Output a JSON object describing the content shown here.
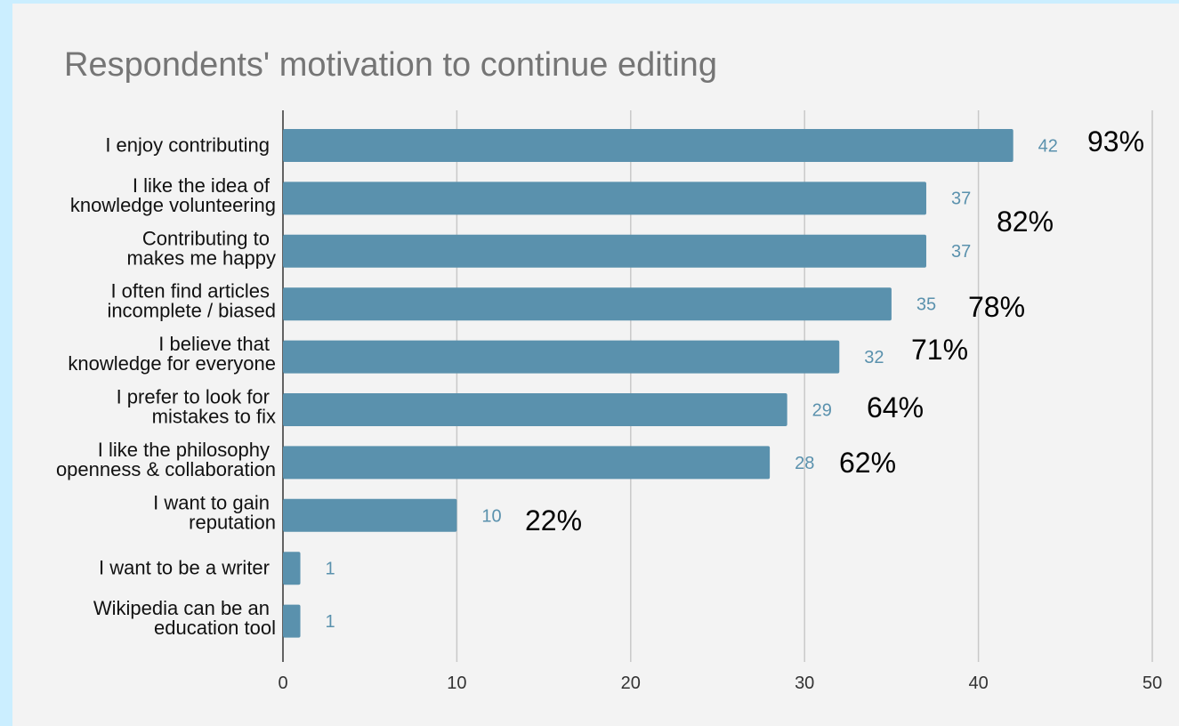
{
  "chart_data": {
    "type": "bar",
    "orientation": "horizontal",
    "title": "Respondents' motivation to continue editing",
    "categories": [
      "I enjoy contributing",
      "I like the idea of knowledge volunteering",
      "Contributing to makes me happy",
      "I often find articles incomplete / biased",
      "I believe that knowledge for everyone",
      "I prefer to look for mistakes to fix",
      "I like the philosophy openness & collaboration",
      "I want to gain reputation",
      "I want to be a writer",
      "Wikipedia can be an education tool"
    ],
    "category_label_lines": [
      [
        "I enjoy contributing"
      ],
      [
        "I like the idea of",
        "knowledge volunteering"
      ],
      [
        "Contributing to",
        "makes me happy"
      ],
      [
        "I often find articles",
        "incomplete / biased"
      ],
      [
        "I believe that",
        "knowledge for everyone"
      ],
      [
        "I prefer to look for",
        "mistakes to fix"
      ],
      [
        "I like the philosophy",
        "openness & collaboration"
      ],
      [
        "I want to gain",
        "reputation"
      ],
      [
        "I want to be a writer"
      ],
      [
        "Wikipedia can be an",
        "education tool"
      ]
    ],
    "values": [
      42,
      37,
      37,
      35,
      32,
      29,
      28,
      10,
      1,
      1
    ],
    "annotations": [
      "93%",
      "82%",
      "",
      "78%",
      "71%",
      "64%",
      "62%",
      "22%",
      "",
      ""
    ],
    "xlim": [
      0,
      50
    ],
    "xticks": [
      0,
      10,
      20,
      30,
      40,
      50
    ],
    "xlabel": "",
    "ylabel": "",
    "grid": true,
    "colors": {
      "bar": "#5a91ad",
      "value_label": "#5a91ad",
      "grid": "#c8c8c8",
      "annotation": "#000000",
      "title": "#757575",
      "background": "#f3f3f3",
      "frame": "#cbeeff"
    }
  }
}
